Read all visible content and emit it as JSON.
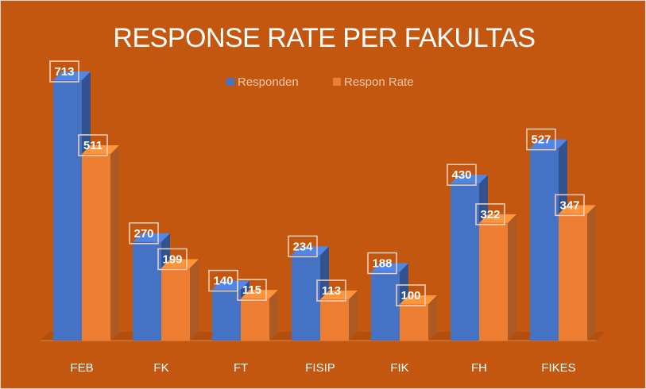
{
  "chart_data": {
    "type": "bar",
    "title": "RESPONSE RATE PER FAKULTAS",
    "categories": [
      "FEB",
      "FK",
      "FT",
      "FISIP",
      "FIK",
      "FH",
      "FIKES"
    ],
    "series": [
      {
        "name": "Responden",
        "values": [
          713,
          270,
          140,
          234,
          188,
          430,
          527
        ],
        "color": "#4472c4"
      },
      {
        "name": "Respon Rate",
        "values": [
          511,
          199,
          115,
          113,
          100,
          322,
          347
        ],
        "color": "#ed7d31"
      }
    ],
    "ylim": [
      0,
      800
    ],
    "grid": false,
    "legend_position": "top",
    "xlabel": "",
    "ylabel": ""
  }
}
